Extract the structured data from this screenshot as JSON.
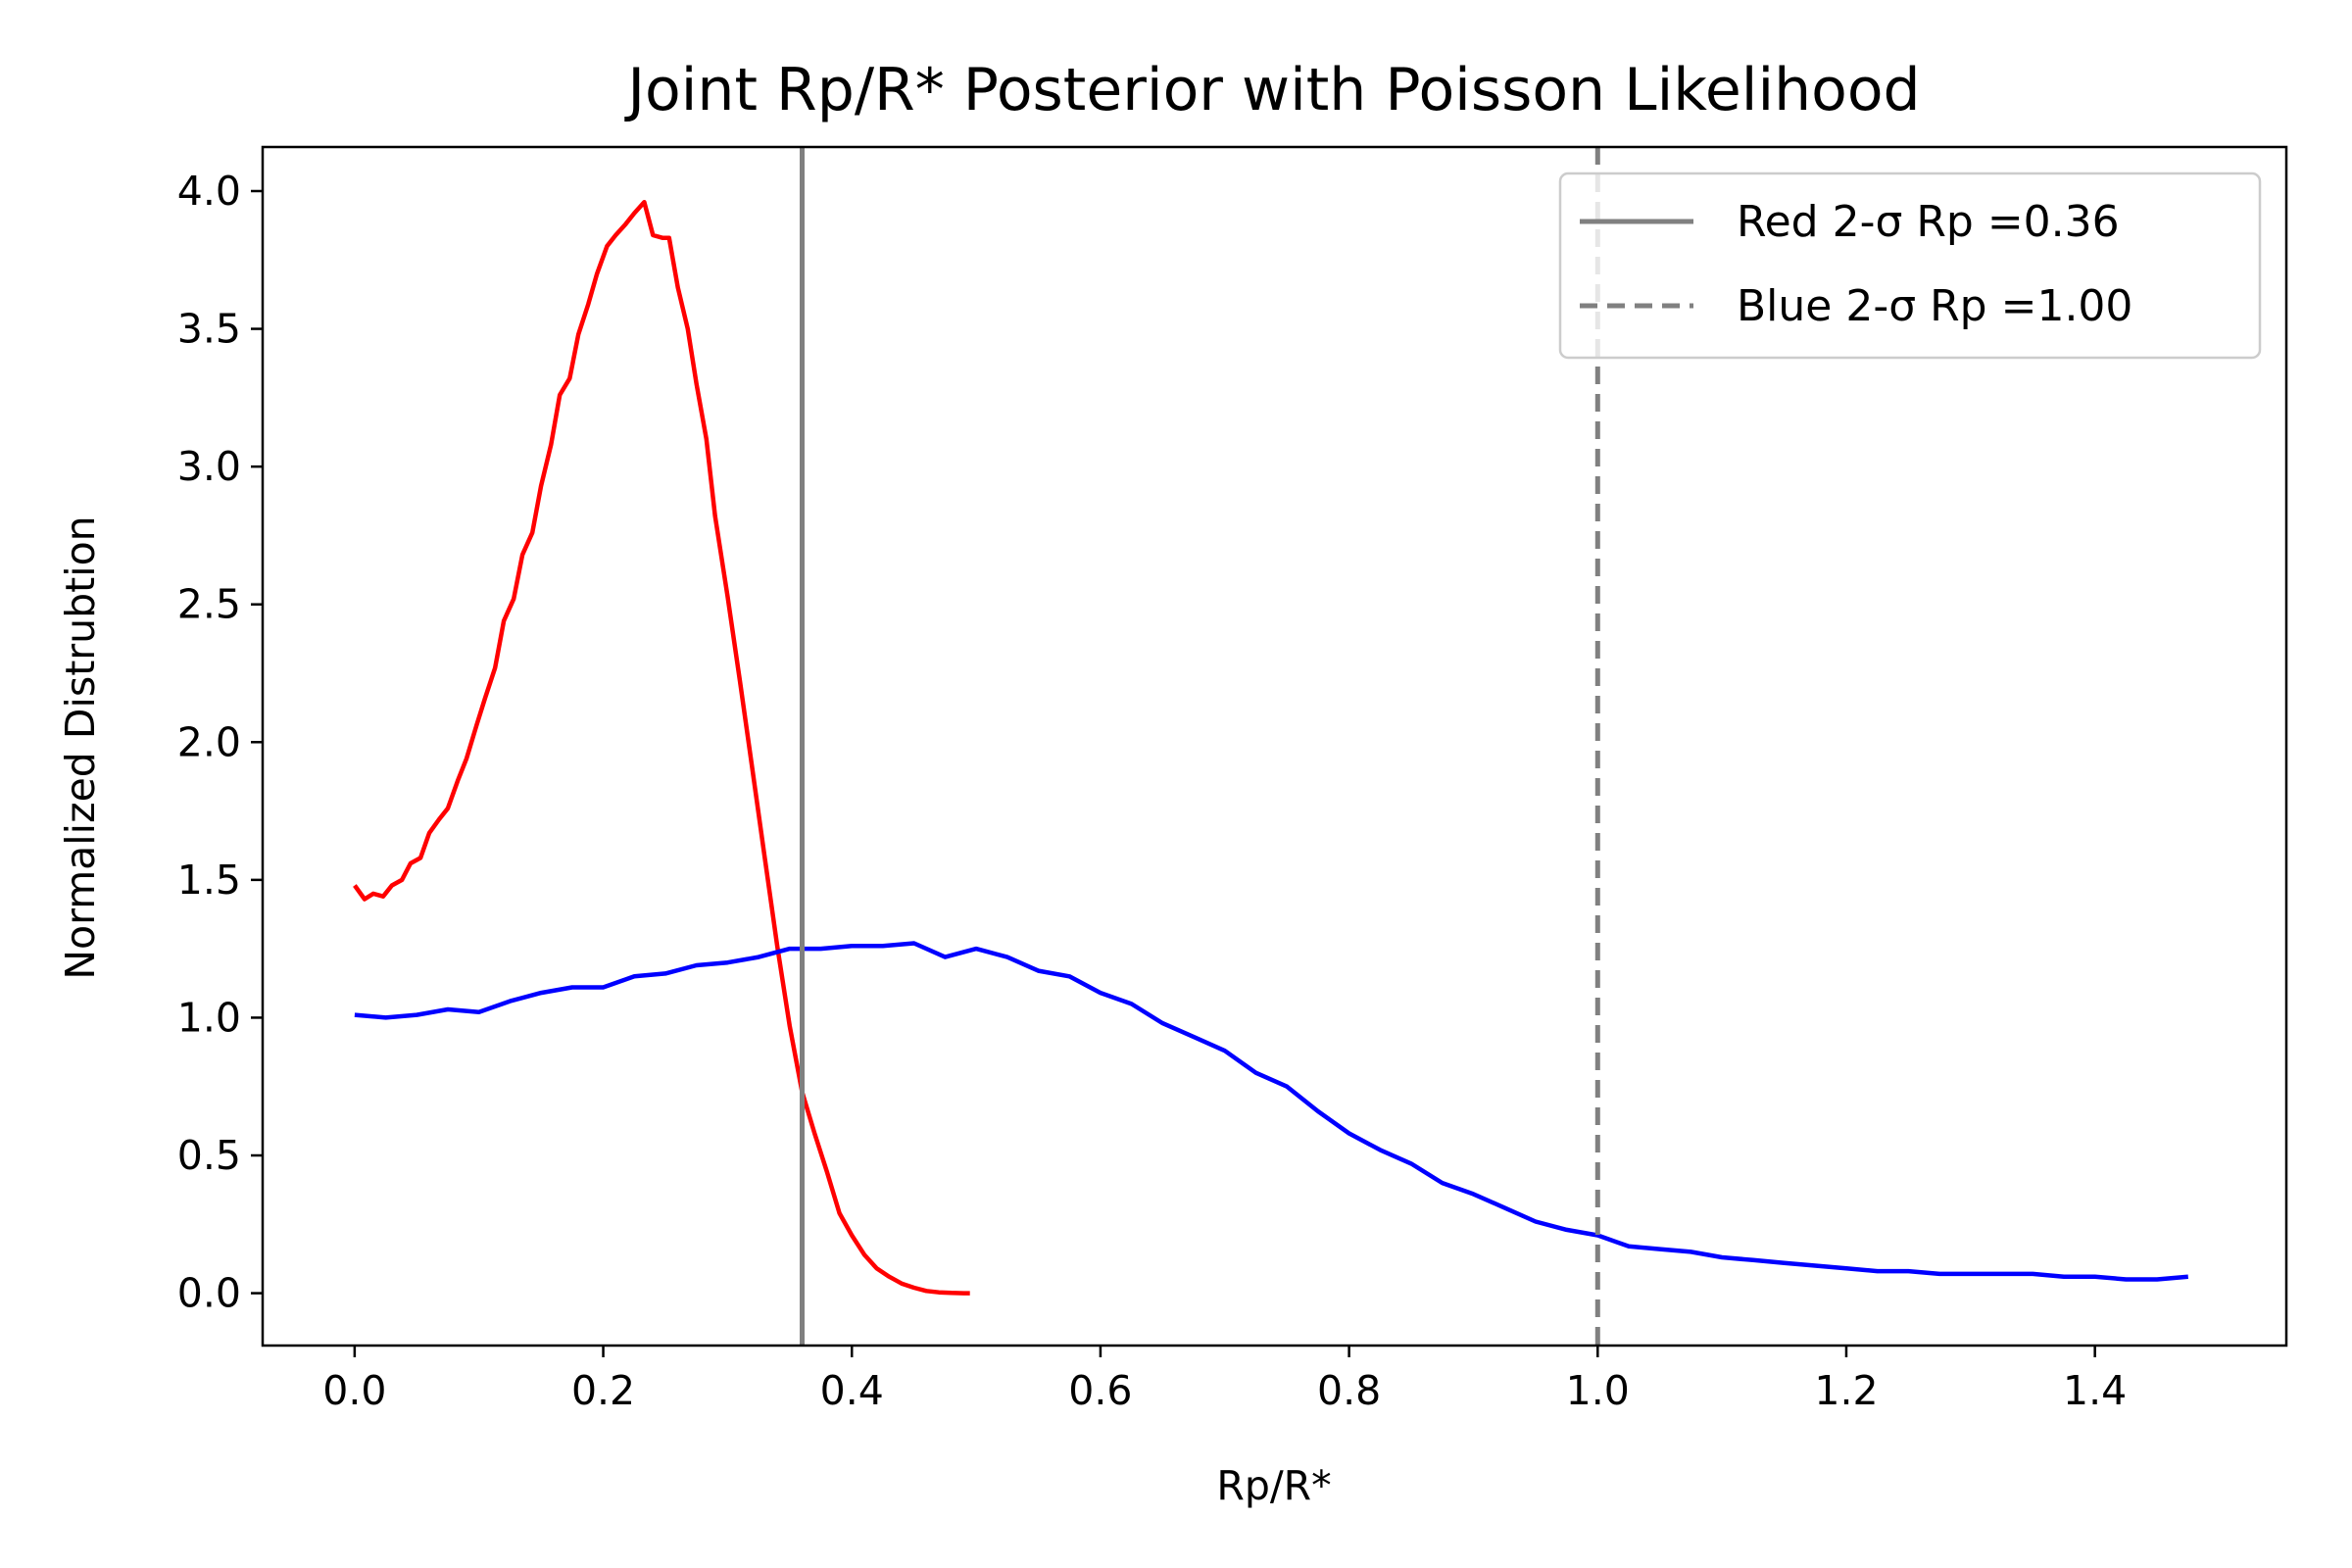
{
  "chart_data": {
    "type": "line",
    "title": "Joint Rp/R* Posterior with Poisson Likelihood",
    "xlabel": "Rp/R*",
    "ylabel": "Normalized Distrubtion",
    "xlim": [
      -0.074,
      1.554
    ],
    "ylim": [
      -0.19,
      4.16
    ],
    "x_ticks": [
      0.0,
      0.2,
      0.4,
      0.6,
      0.8,
      1.0,
      1.2,
      1.4
    ],
    "x_tick_labels": [
      "0.0",
      "0.2",
      "0.4",
      "0.6",
      "0.8",
      "1.0",
      "1.2",
      "1.4"
    ],
    "y_ticks": [
      0.0,
      0.5,
      1.0,
      1.5,
      2.0,
      2.5,
      3.0,
      3.5,
      4.0
    ],
    "y_tick_labels": [
      "0.0",
      "0.5",
      "1.0",
      "1.5",
      "2.0",
      "2.5",
      "3.0",
      "3.5",
      "4.0"
    ],
    "grid": false,
    "legend_position": "top-right",
    "series": [
      {
        "color": "#ff0000",
        "x": [
          0.0,
          0.008,
          0.015,
          0.023,
          0.03,
          0.038,
          0.045,
          0.053,
          0.06,
          0.068,
          0.075,
          0.083,
          0.09,
          0.098,
          0.105,
          0.113,
          0.12,
          0.128,
          0.135,
          0.143,
          0.15,
          0.158,
          0.165,
          0.173,
          0.18,
          0.188,
          0.195,
          0.203,
          0.21,
          0.218,
          0.225,
          0.233,
          0.24,
          0.248,
          0.253,
          0.26,
          0.268,
          0.275,
          0.283,
          0.29,
          0.3,
          0.31,
          0.32,
          0.33,
          0.34,
          0.35,
          0.36,
          0.37,
          0.38,
          0.39,
          0.4,
          0.41,
          0.42,
          0.43,
          0.44,
          0.45,
          0.46,
          0.47,
          0.48,
          0.49,
          0.495
        ],
        "values": [
          1.48,
          1.43,
          1.45,
          1.44,
          1.48,
          1.5,
          1.56,
          1.58,
          1.67,
          1.72,
          1.76,
          1.86,
          1.94,
          2.06,
          2.16,
          2.27,
          2.44,
          2.52,
          2.68,
          2.76,
          2.93,
          3.08,
          3.26,
          3.32,
          3.48,
          3.59,
          3.7,
          3.8,
          3.84,
          3.88,
          3.92,
          3.96,
          3.84,
          3.83,
          3.83,
          3.65,
          3.5,
          3.3,
          3.1,
          2.82,
          2.53,
          2.22,
          1.9,
          1.58,
          1.26,
          0.97,
          0.73,
          0.58,
          0.44,
          0.29,
          0.21,
          0.14,
          0.09,
          0.06,
          0.035,
          0.02,
          0.008,
          0.003,
          0.001,
          0.0,
          0.0
        ]
      },
      {
        "color": "#0000ff",
        "x": [
          0.0,
          0.025,
          0.05,
          0.075,
          0.1,
          0.125,
          0.15,
          0.175,
          0.2,
          0.225,
          0.25,
          0.275,
          0.3,
          0.325,
          0.35,
          0.375,
          0.4,
          0.425,
          0.45,
          0.475,
          0.5,
          0.525,
          0.55,
          0.575,
          0.6,
          0.625,
          0.65,
          0.675,
          0.7,
          0.725,
          0.75,
          0.775,
          0.8,
          0.825,
          0.85,
          0.875,
          0.9,
          0.925,
          0.95,
          0.975,
          1.0,
          1.025,
          1.05,
          1.075,
          1.1,
          1.125,
          1.15,
          1.175,
          1.2,
          1.225,
          1.25,
          1.275,
          1.3,
          1.325,
          1.35,
          1.375,
          1.4,
          1.425,
          1.45,
          1.475
        ],
        "values": [
          1.01,
          1.0,
          1.01,
          1.03,
          1.02,
          1.06,
          1.09,
          1.11,
          1.11,
          1.15,
          1.16,
          1.19,
          1.2,
          1.22,
          1.25,
          1.25,
          1.26,
          1.26,
          1.27,
          1.22,
          1.25,
          1.22,
          1.17,
          1.15,
          1.09,
          1.05,
          0.98,
          0.93,
          0.88,
          0.8,
          0.75,
          0.66,
          0.58,
          0.52,
          0.47,
          0.4,
          0.36,
          0.31,
          0.26,
          0.23,
          0.21,
          0.17,
          0.16,
          0.15,
          0.13,
          0.12,
          0.11,
          0.1,
          0.09,
          0.08,
          0.08,
          0.07,
          0.07,
          0.07,
          0.07,
          0.06,
          0.06,
          0.05,
          0.05,
          0.06
        ]
      }
    ],
    "vlines": [
      {
        "x": 0.36,
        "style": "solid",
        "color": "#808080",
        "legend": "Red 2-σ Rp =0.36"
      },
      {
        "x": 1.0,
        "style": "dashed",
        "color": "#808080",
        "legend": "Blue 2-σ Rp =1.00"
      }
    ]
  }
}
